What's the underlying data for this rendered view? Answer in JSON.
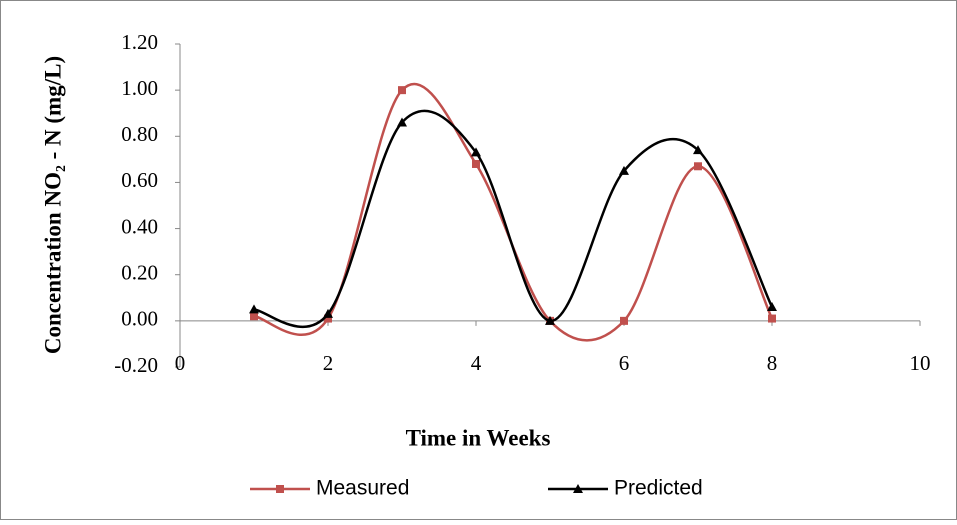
{
  "chart_data": {
    "type": "line",
    "x_label": "Time in Weeks",
    "y_label": "Concentration NO₂ - N (mg/L)",
    "x": [
      1,
      2,
      3,
      4,
      5,
      6,
      7,
      8
    ],
    "series": [
      {
        "name": "Measured",
        "color": "#c0504d",
        "marker": "square",
        "values": [
          0.02,
          0.01,
          1.0,
          0.68,
          0.0,
          0.0,
          0.67,
          0.01
        ]
      },
      {
        "name": "Predicted",
        "color": "#000000",
        "marker": "triangle",
        "values": [
          0.05,
          0.03,
          0.86,
          0.73,
          0.0,
          0.65,
          0.74,
          0.06
        ]
      }
    ],
    "xlim": [
      0,
      10
    ],
    "xticks": [
      0,
      2,
      4,
      6,
      8,
      10
    ],
    "ylim": [
      -0.2,
      1.2
    ],
    "yticks": [
      {
        "value": -0.2,
        "label": "-0.20"
      },
      {
        "value": 0,
        "label": "0.00"
      },
      {
        "value": 0.2,
        "label": "0.20"
      },
      {
        "value": 0.4,
        "label": "0.40"
      },
      {
        "value": 0.6,
        "label": "0.60"
      },
      {
        "value": 0.8,
        "label": "0.80"
      },
      {
        "value": 1.0,
        "label": "1.00"
      },
      {
        "value": 1.2,
        "label": "1.20"
      }
    ],
    "smooth": true,
    "grid": false,
    "legend": "bottom"
  }
}
